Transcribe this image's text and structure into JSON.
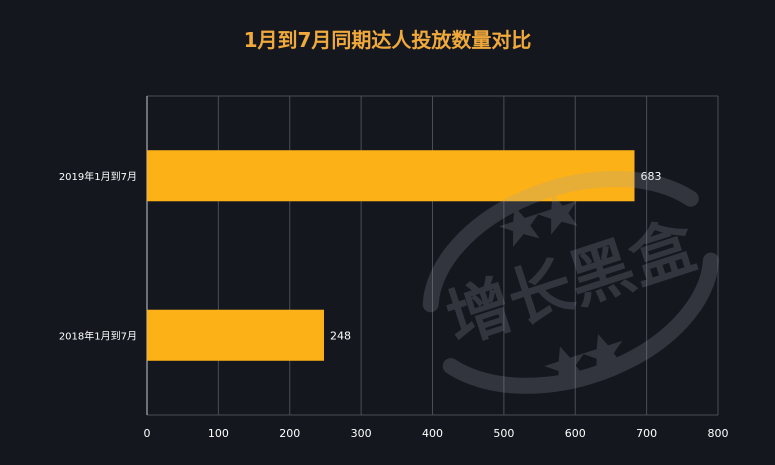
{
  "page": {
    "title": "1月到7月同期达人投放数量对比"
  },
  "watermark": {
    "text": "增长黑盒"
  },
  "chart_data": {
    "type": "bar",
    "orientation": "horizontal",
    "title": "1月到7月同期达人投放数量对比",
    "xlabel": "",
    "ylabel": "",
    "categories": [
      "2019年1月到7月",
      "2018年1月到7月"
    ],
    "values": [
      683,
      248
    ],
    "xlim": [
      0,
      800
    ],
    "xticks": [
      0,
      100,
      200,
      300,
      400,
      500,
      600,
      700,
      800
    ],
    "grid": "vertical",
    "legend": "none",
    "colors": {
      "background": "#15171f",
      "bar": "#fcb116",
      "title": "#f0a93a",
      "text": "#ffffff",
      "grid": "#4a4d57"
    }
  }
}
